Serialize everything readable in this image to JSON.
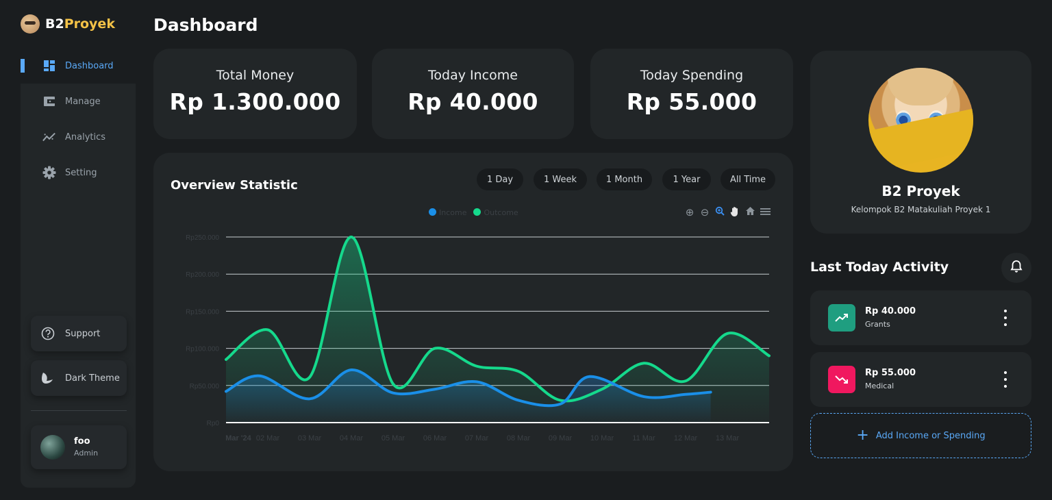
{
  "brand": {
    "part1": "B2",
    "part2": "Proyek"
  },
  "page_title": "Dashboard",
  "sidebar": {
    "items": [
      {
        "label": "Dashboard",
        "icon": "dashboard-icon",
        "active": true
      },
      {
        "label": "Manage",
        "icon": "wallet-icon"
      },
      {
        "label": "Analytics",
        "icon": "analytics-icon"
      },
      {
        "label": "Setting",
        "icon": "gear-icon"
      }
    ],
    "support": "Support",
    "theme": "Dark Theme",
    "user": {
      "name": "foo",
      "role": "Admin"
    }
  },
  "stats": [
    {
      "label": "Total Money",
      "value": "Rp 1.300.000"
    },
    {
      "label": "Today Income",
      "value": "Rp 40.000"
    },
    {
      "label": "Today Spending",
      "value": "Rp 55.000"
    }
  ],
  "overview": {
    "title": "Overview Statistic",
    "ranges": [
      "1 Day",
      "1 Week",
      "1 Month",
      "1 Year",
      "All Time"
    ]
  },
  "chart_data": {
    "type": "area",
    "title": "",
    "legend": [
      "Income",
      "Outcome"
    ],
    "categories": [
      "Mar '24",
      "02 Mar",
      "03 Mar",
      "04 Mar",
      "05 Mar",
      "06 Mar",
      "07 Mar",
      "08 Mar",
      "09 Mar",
      "10 Mar",
      "11 Mar",
      "12 Mar",
      "13 Mar"
    ],
    "y_ticks": [
      "Rp0",
      "Rp50.000",
      "Rp100.000",
      "Rp150.000",
      "Rp200.000",
      "Rp250.000"
    ],
    "ylim": [
      0,
      250000
    ],
    "xlim": [
      0,
      13
    ],
    "series": [
      {
        "name": "Income",
        "color": "#1a8fe8",
        "x": [
          0,
          0.8,
          2,
          3,
          4,
          5,
          6,
          7,
          8,
          8.7,
          10,
          11,
          11.6
        ],
        "values": [
          42000,
          63000,
          32000,
          71000,
          40000,
          45000,
          55000,
          30000,
          25000,
          62000,
          35000,
          38000,
          41000
        ]
      },
      {
        "name": "Outcome",
        "color": "#15d98c",
        "x": [
          0,
          1,
          2,
          3,
          4,
          5,
          6,
          7,
          8,
          9,
          10,
          11,
          12,
          13
        ],
        "values": [
          85000,
          125000,
          61000,
          250000,
          52000,
          100000,
          76000,
          69000,
          30000,
          45000,
          80000,
          56000,
          120000,
          90000
        ]
      }
    ]
  },
  "profile": {
    "name": "B2 Proyek",
    "subtitle": "Kelompok B2 Matakuliah Proyek 1"
  },
  "activity": {
    "title": "Last Today Activity",
    "items": [
      {
        "amount": "Rp 40.000",
        "category": "Grants",
        "type": "income",
        "color": "#1f9e80"
      },
      {
        "amount": "Rp 55.000",
        "category": "Medical",
        "type": "spending",
        "color": "#f0185f"
      }
    ],
    "add_label": "Add Income or Spending"
  }
}
